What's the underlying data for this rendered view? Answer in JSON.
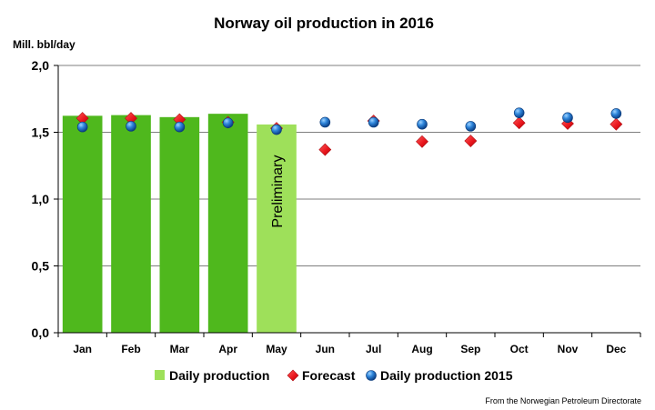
{
  "chart_data": {
    "type": "bar",
    "title": "Norway oil production in 2016",
    "ylabel": "Mill. bbl/day",
    "xlabel": "",
    "ylim": [
      0,
      2
    ],
    "yticks": [
      "0,0",
      "0,5",
      "1,0",
      "1,5",
      "2,0"
    ],
    "ytick_values": [
      0,
      0.5,
      1,
      1.5,
      2
    ],
    "grid": true,
    "legend_position": "bottom",
    "categories": [
      "Jan",
      "Feb",
      "Mar",
      "Apr",
      "May",
      "Jun",
      "Jul",
      "Aug",
      "Sep",
      "Oct",
      "Nov",
      "Dec"
    ],
    "series": [
      {
        "name": "Daily production",
        "kind": "bar",
        "values": [
          1.62,
          1.625,
          1.61,
          1.635,
          1.555,
          null,
          null,
          null,
          null,
          null,
          null,
          null
        ],
        "colors": [
          "#4fb81d",
          "#4fb81d",
          "#4fb81d",
          "#4fb81d",
          "#9ee05a",
          null,
          null,
          null,
          null,
          null,
          null,
          null
        ],
        "legend_color": "#9ee05a"
      },
      {
        "name": "Forecast",
        "kind": "diamond",
        "values": [
          1.605,
          1.605,
          1.595,
          1.575,
          1.53,
          1.37,
          1.585,
          1.43,
          1.435,
          1.57,
          1.565,
          1.56
        ],
        "color": "#e8141b"
      },
      {
        "name": "Daily production 2015",
        "kind": "circle",
        "values": [
          1.54,
          1.545,
          1.54,
          1.57,
          1.52,
          1.575,
          1.575,
          1.56,
          1.545,
          1.645,
          1.61,
          1.64
        ],
        "color": "#1e6fc9"
      }
    ],
    "annotations": [
      {
        "text": "Preliminary",
        "category": "May"
      }
    ],
    "source": "From the Norwegian Petroleum Directorate"
  }
}
